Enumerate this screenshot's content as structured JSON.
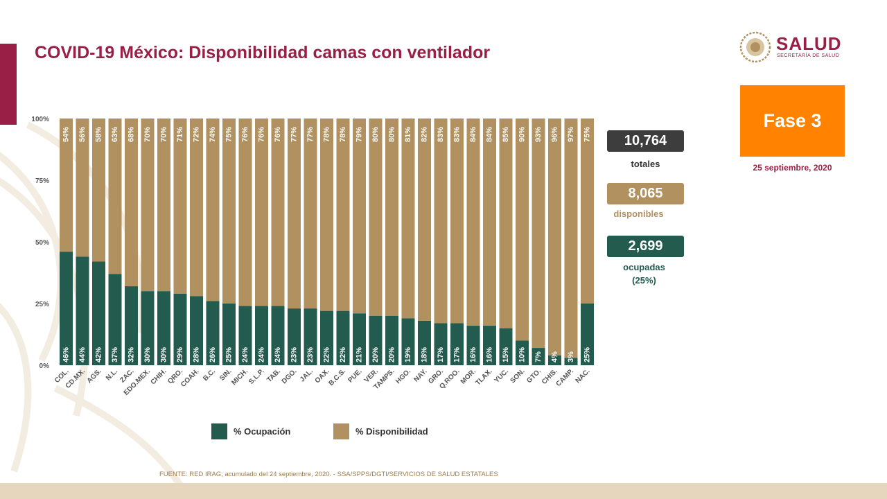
{
  "header": {
    "title": "COVID-19 México: Disponibilidad camas con ventilador"
  },
  "logo": {
    "word": "SALUD",
    "subtitle": "SECRETARÍA DE SALUD"
  },
  "phase": {
    "label": "Fase 3",
    "date": "25 septiembre, 2020",
    "color": "#ff8300"
  },
  "stats": {
    "total": {
      "value": "10,764",
      "label": "totales",
      "color": "#3d3d3d"
    },
    "available": {
      "value": "8,065",
      "label": "disponibles",
      "color": "#b0915f"
    },
    "occupied": {
      "value": "2,699",
      "label": "ocupadas",
      "label2": "(25%)",
      "color": "#235b4e"
    }
  },
  "legend": {
    "occupation": "% Ocupación",
    "availability": "% Disponibilidad"
  },
  "source": "FUENTE: RED IRAG, acumulado del 24 septiembre, 2020. -  SSA/SPPS/DGTI/SERVICIOS DE SALUD ESTATALES",
  "chart_data": {
    "type": "bar",
    "stacked": true,
    "categories": [
      "COL.",
      "CD.MX.",
      "AGS.",
      "N.L.",
      "ZAC.",
      "EDO.MEX.",
      "CHIH.",
      "QRO.",
      "COAH.",
      "B.C.",
      "SIN.",
      "MICH.",
      "S.L.P.",
      "TAB.",
      "DGO.",
      "JAL.",
      "OAX.",
      "B.C.S.",
      "PUE.",
      "VER.",
      "TAMPS.",
      "HGO.",
      "NAY.",
      "GRO.",
      "Q.ROO.",
      "MOR.",
      "TLAX.",
      "YUC.",
      "SON.",
      "GTO.",
      "CHIS.",
      "CAMP.",
      "NAC."
    ],
    "series": [
      {
        "name": "% Ocupación",
        "color": "#235b4e",
        "values": [
          46,
          44,
          42,
          37,
          32,
          30,
          30,
          29,
          28,
          26,
          25,
          24,
          24,
          24,
          23,
          23,
          22,
          22,
          21,
          20,
          20,
          19,
          18,
          17,
          17,
          16,
          16,
          15,
          10,
          7,
          4,
          3,
          25
        ]
      },
      {
        "name": "% Disponibilidad",
        "color": "#b0915f",
        "values": [
          54,
          56,
          58,
          63,
          68,
          70,
          70,
          71,
          72,
          74,
          75,
          76,
          76,
          76,
          77,
          77,
          78,
          78,
          79,
          80,
          80,
          81,
          82,
          83,
          83,
          84,
          84,
          85,
          90,
          93,
          96,
          97,
          75
        ]
      }
    ],
    "yticks": [
      "0%",
      "25%",
      "50%",
      "75%",
      "100%"
    ],
    "ylim": [
      0,
      100
    ],
    "grid": false,
    "legend_position": "bottom"
  }
}
